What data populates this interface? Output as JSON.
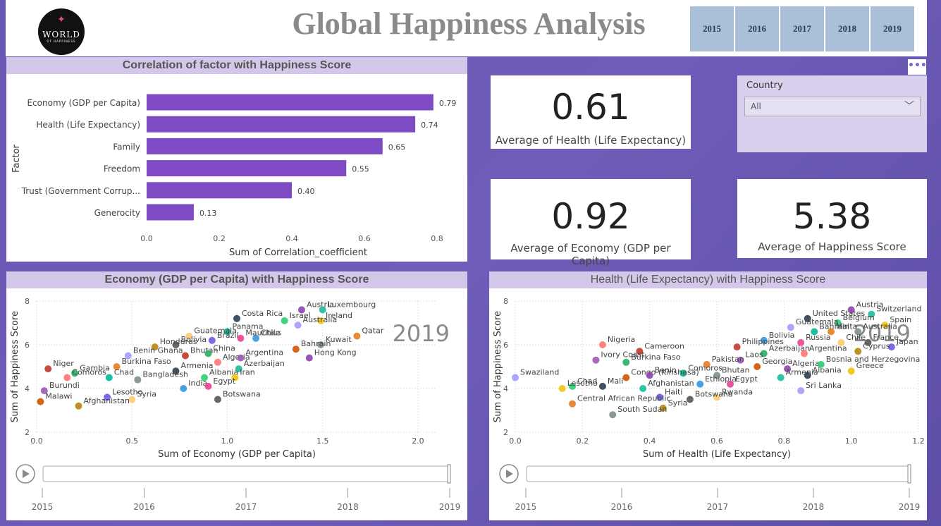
{
  "header": {
    "logo_line1": "WORLD",
    "logo_line2": "OF HAPPINESS",
    "title": "Global Happiness Analysis",
    "years": [
      "2015",
      "2016",
      "2017",
      "2018",
      "2019"
    ]
  },
  "bar_panel": {
    "title": "Correlation of factor with Happiness Score"
  },
  "kpis": {
    "health": {
      "value": "0.61",
      "label": "Average of Health (Life Expectancy)"
    },
    "economy": {
      "value": "0.92",
      "label": "Average of Economy (GDP per Capita)"
    },
    "happiness": {
      "value": "5.38",
      "label": "Average of Happiness Score"
    }
  },
  "slicer": {
    "label": "Country",
    "value": "All"
  },
  "more_label": "•••",
  "scatter_left": {
    "title": "Economy (GDP per Capita) with Happiness Score"
  },
  "scatter_right": {
    "title": "Health (Life Expectancy) with Happiness Score"
  },
  "colors": {
    "bar": "#7e4bc4",
    "title_bg": "#d4c8ea",
    "year_btn": "#a9c0d8"
  },
  "chart_data": [
    {
      "type": "bar",
      "orientation": "horizontal",
      "title": "Correlation of factor with Happiness Score",
      "ylabel": "Factor",
      "xlabel": "Sum of Correlation_coefficient",
      "categories": [
        "Economy (GDP per Capita)",
        "Health (Life Expectancy)",
        "Family",
        "Freedom",
        "Trust (Government Corrup...",
        "Generocity"
      ],
      "values": [
        0.79,
        0.74,
        0.65,
        0.55,
        0.4,
        0.13
      ],
      "value_labels": [
        "0.79",
        "0.74",
        "0.65",
        "0.55",
        "0.40",
        "0.13"
      ],
      "xlim": [
        0,
        0.8
      ],
      "xticks": [
        "0.0",
        "0.2",
        "0.4",
        "0.6",
        "0.8"
      ]
    },
    {
      "type": "scatter",
      "title": "Economy (GDP per Capita) with Happiness Score",
      "xlabel": "Sum of Economy (GDP per Capita)",
      "ylabel": "Sum of Happiness Score",
      "xlim": [
        0,
        2.1
      ],
      "ylim": [
        2,
        8
      ],
      "xticks": [
        "0.0",
        "0.5",
        "1.0",
        "1.5",
        "2.0"
      ],
      "yticks": [
        "2",
        "4",
        "6",
        "8"
      ],
      "watermark": "2019",
      "timeline": [
        "2015",
        "2016",
        "2017",
        "2018",
        "2019"
      ],
      "points": [
        {
          "x": 1.39,
          "y": 7.6,
          "label": "Austria"
        },
        {
          "x": 1.5,
          "y": 7.6,
          "label": "Luxembourg"
        },
        {
          "x": 1.05,
          "y": 7.2,
          "label": "Costa Rica"
        },
        {
          "x": 1.3,
          "y": 7.1,
          "label": "Israel"
        },
        {
          "x": 1.49,
          "y": 7.1,
          "label": "Ireland"
        },
        {
          "x": 1.37,
          "y": 6.9,
          "label": "Australia"
        },
        {
          "x": 1.68,
          "y": 6.4,
          "label": "Qatar"
        },
        {
          "x": 1.49,
          "y": 6.0,
          "label": "Kuwait"
        },
        {
          "x": 1.0,
          "y": 6.6,
          "label": "Panama"
        },
        {
          "x": 1.15,
          "y": 6.3,
          "label": "Chile"
        },
        {
          "x": 1.07,
          "y": 6.3,
          "label": "Mauritius"
        },
        {
          "x": 0.8,
          "y": 6.4,
          "label": "Guatemala"
        },
        {
          "x": 0.73,
          "y": 6.0,
          "label": "Bolivia"
        },
        {
          "x": 0.92,
          "y": 6.2,
          "label": "Brazil"
        },
        {
          "x": 0.62,
          "y": 5.9,
          "label": "Honduras"
        },
        {
          "x": 0.78,
          "y": 5.5,
          "label": "Bhutan"
        },
        {
          "x": 0.9,
          "y": 5.6,
          "label": "China"
        },
        {
          "x": 0.95,
          "y": 5.2,
          "label": "Algeria"
        },
        {
          "x": 1.07,
          "y": 5.4,
          "label": "Argentina"
        },
        {
          "x": 1.36,
          "y": 5.8,
          "label": "Bahrain"
        },
        {
          "x": 1.43,
          "y": 5.4,
          "label": "Hong Kong"
        },
        {
          "x": 1.06,
          "y": 4.9,
          "label": "Azerbaijan"
        },
        {
          "x": 0.73,
          "y": 4.8,
          "label": "Armenia"
        },
        {
          "x": 0.88,
          "y": 4.5,
          "label": "Albania"
        },
        {
          "x": 1.04,
          "y": 4.5,
          "label": "Iran"
        },
        {
          "x": 0.48,
          "y": 5.5,
          "label": "Benin Ghana"
        },
        {
          "x": 0.42,
          "y": 5.0,
          "label": "Burkina Faso"
        },
        {
          "x": 0.53,
          "y": 4.4,
          "label": "Bangladesh"
        },
        {
          "x": 0.38,
          "y": 4.5,
          "label": "Chad"
        },
        {
          "x": 0.77,
          "y": 4.0,
          "label": "India"
        },
        {
          "x": 0.9,
          "y": 4.1,
          "label": "Egypt"
        },
        {
          "x": 0.5,
          "y": 3.5,
          "label": "Syria"
        },
        {
          "x": 0.95,
          "y": 3.5,
          "label": "Botswana"
        },
        {
          "x": 0.37,
          "y": 3.6,
          "label": "Lesotho"
        },
        {
          "x": 0.22,
          "y": 3.2,
          "label": "Afghanistan"
        },
        {
          "x": 0.06,
          "y": 4.9,
          "label": "Niger"
        },
        {
          "x": 0.2,
          "y": 4.7,
          "label": "Gambia"
        },
        {
          "x": 0.16,
          "y": 4.5,
          "label": "Comoros"
        },
        {
          "x": 0.04,
          "y": 3.9,
          "label": "Burundi"
        },
        {
          "x": 0.02,
          "y": 3.4,
          "label": "Malawi"
        }
      ]
    },
    {
      "type": "scatter",
      "title": "Health (Life Expectancy) with Happiness Score",
      "xlabel": "Sum of Health (Life Expectancy)",
      "ylabel": "Sum of Happiness Score",
      "xlim": [
        0,
        1.2
      ],
      "ylim": [
        2,
        8
      ],
      "xticks": [
        "0.0",
        "0.2",
        "0.4",
        "0.6",
        "0.8",
        "1.0",
        "1.2"
      ],
      "yticks": [
        "2",
        "4",
        "6",
        "8"
      ],
      "watermark": "2019",
      "timeline": [
        "2015",
        "2016",
        "2017",
        "2018",
        "2019"
      ],
      "points": [
        {
          "x": 1.0,
          "y": 7.6,
          "label": "Austria"
        },
        {
          "x": 1.06,
          "y": 7.4,
          "label": "Switzerland"
        },
        {
          "x": 0.87,
          "y": 7.2,
          "label": "United States"
        },
        {
          "x": 0.96,
          "y": 7.0,
          "label": "Belgium"
        },
        {
          "x": 1.1,
          "y": 6.9,
          "label": "Spain"
        },
        {
          "x": 0.82,
          "y": 6.8,
          "label": "Guatemala"
        },
        {
          "x": 0.94,
          "y": 6.6,
          "label": "Malta"
        },
        {
          "x": 1.02,
          "y": 6.6,
          "label": "Australia"
        },
        {
          "x": 0.89,
          "y": 6.6,
          "label": "Bahrain"
        },
        {
          "x": 0.74,
          "y": 6.2,
          "label": "Bolivia"
        },
        {
          "x": 0.85,
          "y": 6.1,
          "label": "Russia"
        },
        {
          "x": 0.97,
          "y": 6.1,
          "label": "Chile"
        },
        {
          "x": 1.05,
          "y": 6.1,
          "label": "France"
        },
        {
          "x": 1.12,
          "y": 5.9,
          "label": "Japan"
        },
        {
          "x": 1.02,
          "y": 5.7,
          "label": "Cyprus"
        },
        {
          "x": 0.66,
          "y": 5.9,
          "label": "Philippines"
        },
        {
          "x": 0.74,
          "y": 5.6,
          "label": "Azerbaijan"
        },
        {
          "x": 0.86,
          "y": 5.6,
          "label": "Argentina"
        },
        {
          "x": 0.67,
          "y": 5.3,
          "label": "Laos"
        },
        {
          "x": 0.72,
          "y": 5.0,
          "label": "Georgia"
        },
        {
          "x": 0.81,
          "y": 4.9,
          "label": "Algeria"
        },
        {
          "x": 0.79,
          "y": 4.5,
          "label": "Armenia"
        },
        {
          "x": 0.87,
          "y": 4.6,
          "label": "Albania"
        },
        {
          "x": 0.91,
          "y": 5.1,
          "label": "Bosnia and Herzegovina"
        },
        {
          "x": 1.0,
          "y": 4.8,
          "label": "Greece"
        },
        {
          "x": 0.85,
          "y": 3.9,
          "label": "Sri Lanka"
        },
        {
          "x": 0.57,
          "y": 5.1,
          "label": "Pakistan"
        },
        {
          "x": 0.6,
          "y": 4.6,
          "label": "Bhutan"
        },
        {
          "x": 0.5,
          "y": 4.7,
          "label": "Comoros"
        },
        {
          "x": 0.55,
          "y": 4.2,
          "label": "Ethiopia"
        },
        {
          "x": 0.64,
          "y": 4.2,
          "label": "Egypt"
        },
        {
          "x": 0.6,
          "y": 3.6,
          "label": "Rwanda"
        },
        {
          "x": 0.52,
          "y": 3.5,
          "label": "Botswana"
        },
        {
          "x": 0.43,
          "y": 3.6,
          "label": "Haiti"
        },
        {
          "x": 0.44,
          "y": 3.1,
          "label": "Syria"
        },
        {
          "x": 0.37,
          "y": 5.7,
          "label": "Cameroon"
        },
        {
          "x": 0.33,
          "y": 5.2,
          "label": "Burkina Faso"
        },
        {
          "x": 0.26,
          "y": 6.0,
          "label": "Nigeria"
        },
        {
          "x": 0.24,
          "y": 5.3,
          "label": "Ivory Coast"
        },
        {
          "x": 0.33,
          "y": 4.5,
          "label": "Congo (Kinshasa)"
        },
        {
          "x": 0.4,
          "y": 4.6,
          "label": "Benin"
        },
        {
          "x": 0.38,
          "y": 4.0,
          "label": "Afghanistan"
        },
        {
          "x": 0.26,
          "y": 4.1,
          "label": "Mali"
        },
        {
          "x": 0.17,
          "y": 4.1,
          "label": "Chad"
        },
        {
          "x": 0.14,
          "y": 4.0,
          "label": "Lesotho"
        },
        {
          "x": 0.0,
          "y": 4.5,
          "label": "Swaziland"
        },
        {
          "x": 0.17,
          "y": 3.3,
          "label": "Central African Republic"
        },
        {
          "x": 0.29,
          "y": 2.8,
          "label": "South Sudan"
        }
      ]
    }
  ]
}
